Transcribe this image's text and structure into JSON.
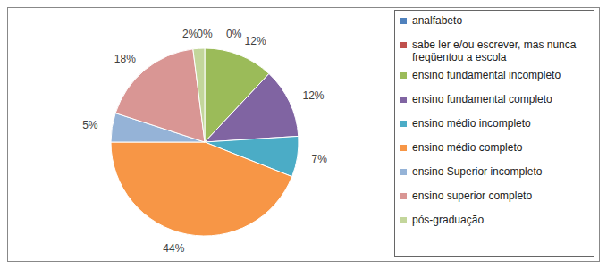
{
  "chart_data": {
    "type": "pie",
    "categories": [
      "analfabeto",
      "sabe ler e/ou escrever, mas nunca freqüentou a escola",
      "ensino fundamental incompleto",
      "ensino fundamental completo",
      "ensino médio incompleto",
      "ensino médio completo",
      "ensino Superior incompleto",
      "ensino superior completo",
      "pós-graduação"
    ],
    "values": [
      0,
      0,
      12,
      12,
      7,
      44,
      5,
      18,
      2
    ],
    "value_labels": [
      "0%",
      "0%",
      "12%",
      "12%",
      "7%",
      "44%",
      "5%",
      "18%",
      "2%"
    ],
    "colors": [
      "#4F81BD",
      "#C0504D",
      "#9BBB59",
      "#8064A2",
      "#4BACC6",
      "#F79646",
      "#95B3D7",
      "#D99694",
      "#C3D69B"
    ],
    "data_labels": true,
    "legend": "right"
  }
}
